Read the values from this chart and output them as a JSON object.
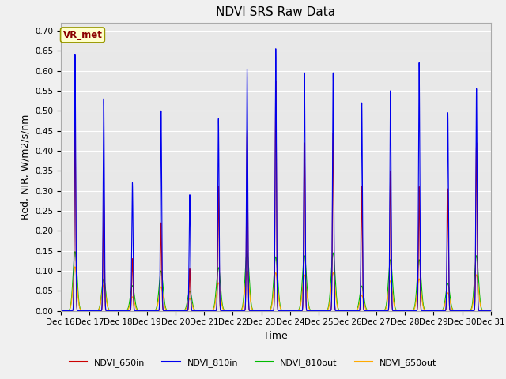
{
  "title": "NDVI SRS Raw Data",
  "xlabel": "Time",
  "ylabel": "Red, NIR, W/m2/s/nm",
  "annotation": "VR_met",
  "ylim": [
    0.0,
    0.72
  ],
  "yticks": [
    0.0,
    0.05,
    0.1,
    0.15,
    0.2,
    0.25,
    0.3,
    0.35,
    0.4,
    0.45,
    0.5,
    0.55,
    0.6,
    0.65,
    0.7
  ],
  "line_colors": {
    "NDVI_650in": "#cc0000",
    "NDVI_810in": "#0000ee",
    "NDVI_810out": "#00bb00",
    "NDVI_650out": "#ffaa00"
  },
  "days": [
    "Dec 16",
    "Dec 17",
    "Dec 18",
    "Dec 19",
    "Dec 20",
    "Dec 21",
    "Dec 22",
    "Dec 23",
    "Dec 24",
    "Dec 25",
    "Dec 26",
    "Dec 27",
    "Dec 28",
    "Dec 29",
    "Dec 30",
    "Dec 31"
  ],
  "peaks_810in": [
    0.64,
    0.53,
    0.32,
    0.5,
    0.29,
    0.48,
    0.605,
    0.655,
    0.595,
    0.595,
    0.52,
    0.55,
    0.62,
    0.495,
    0.555
  ],
  "peaks_650in": [
    0.47,
    0.3,
    0.13,
    0.22,
    0.105,
    0.31,
    0.45,
    0.575,
    0.42,
    0.445,
    0.31,
    0.35,
    0.31,
    0.305,
    0.42
  ],
  "peaks_810out": [
    0.148,
    0.08,
    0.063,
    0.1,
    0.05,
    0.108,
    0.148,
    0.135,
    0.138,
    0.145,
    0.062,
    0.128,
    0.128,
    0.068,
    0.138
  ],
  "peaks_650out": [
    0.11,
    0.065,
    0.035,
    0.06,
    0.03,
    0.07,
    0.1,
    0.095,
    0.09,
    0.095,
    0.038,
    0.075,
    0.08,
    0.045,
    0.09
  ],
  "background_color": "#e8e8e8",
  "fig_background": "#f0f0f0",
  "grid_color": "#ffffff",
  "title_fontsize": 11,
  "axis_fontsize": 9,
  "tick_fontsize": 7.5
}
